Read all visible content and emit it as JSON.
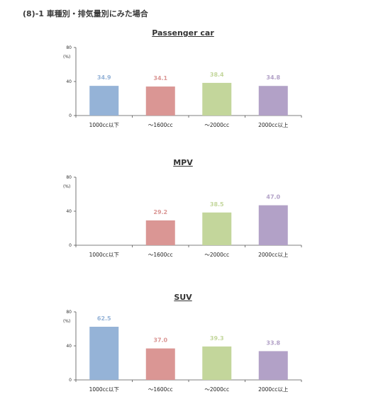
{
  "page": {
    "title": "(8)-1 車種別・排気量別にみた場合"
  },
  "chart_data": [
    {
      "type": "bar",
      "title": "Passenger car",
      "unit": "(%)",
      "ylim": [
        0,
        80
      ],
      "yticks": [
        "0",
        "40",
        "80"
      ],
      "categories": [
        "1000cc以下",
        "～1600cc",
        "～2000cc",
        "2000cc以上"
      ],
      "values": [
        34.9,
        34.1,
        38.4,
        34.8
      ],
      "labels": [
        "34.9",
        "34.1",
        "38.4",
        "34.8"
      ],
      "colors": [
        "#95b3d7",
        "#da9694",
        "#c3d69b",
        "#b2a1c7"
      ],
      "label_colors": [
        "#95b3d7",
        "#da9694",
        "#c3d69b",
        "#b2a1c7"
      ]
    },
    {
      "type": "bar",
      "title": "MPV",
      "unit": "(%)",
      "ylim": [
        0,
        80
      ],
      "yticks": [
        "0",
        "40",
        "80"
      ],
      "categories": [
        "1000cc以下",
        "～1600cc",
        "～2000cc",
        "2000cc以上"
      ],
      "values": [
        null,
        29.2,
        38.5,
        47.0
      ],
      "labels": [
        "",
        "29.2",
        "38.5",
        "47.0"
      ],
      "colors": [
        "#95b3d7",
        "#da9694",
        "#c3d69b",
        "#b2a1c7"
      ],
      "label_colors": [
        "#95b3d7",
        "#da9694",
        "#c3d69b",
        "#b2a1c7"
      ]
    },
    {
      "type": "bar",
      "title": "SUV",
      "unit": "(%)",
      "ylim": [
        0,
        80
      ],
      "yticks": [
        "0",
        "40",
        "80"
      ],
      "categories": [
        "1000cc以下",
        "～1600cc",
        "～2000cc",
        "2000cc以上"
      ],
      "values": [
        62.5,
        37.0,
        39.3,
        33.8
      ],
      "labels": [
        "62.5",
        "37.0",
        "39.3",
        "33.8"
      ],
      "colors": [
        "#95b3d7",
        "#da9694",
        "#c3d69b",
        "#b2a1c7"
      ],
      "label_colors": [
        "#95b3d7",
        "#da9694",
        "#c3d69b",
        "#b2a1c7"
      ]
    }
  ]
}
